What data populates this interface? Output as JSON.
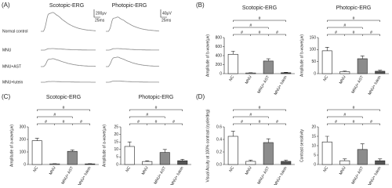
{
  "panel_labels": [
    "(A)",
    "(B)",
    "(C)",
    "(D)"
  ],
  "erg": {
    "columns": [
      "Scotopic-ERG",
      "Photopic-ERG"
    ],
    "rows": [
      "Normal control",
      "MNU",
      "MNU+AST",
      "MNU+lutein"
    ],
    "scale_bars": [
      [
        "200μv",
        "25ms"
      ],
      [
        "40μV",
        "25ms"
      ]
    ]
  },
  "chart_data": [
    {
      "type": "bar",
      "title": "Scotopic-ERG",
      "ylabel": "Amplitude of b-wave(μv)",
      "categories": [
        "NC",
        "MNU",
        "MNU+ AST",
        "MNU+ lutein"
      ],
      "values": [
        430,
        15,
        280,
        20
      ],
      "errors": [
        70,
        5,
        50,
        10
      ],
      "colors": [
        "#ffffff",
        "#ffffff",
        "#8c8c8c",
        "#555555"
      ],
      "ylim": [
        0,
        800
      ],
      "yticks": [
        0,
        200,
        400,
        600,
        800
      ],
      "significance": "#"
    },
    {
      "type": "bar",
      "title": "Photopic-ERG",
      "ylabel": "Amplitude of b-wave(μv)",
      "categories": [
        "NC",
        "MNU",
        "MNU+ AST",
        "MNU+ lutein"
      ],
      "values": [
        95,
        8,
        62,
        10
      ],
      "errors": [
        15,
        3,
        12,
        4
      ],
      "colors": [
        "#ffffff",
        "#ffffff",
        "#8c8c8c",
        "#555555"
      ],
      "ylim": [
        0,
        150
      ],
      "yticks": [
        0,
        50,
        100,
        150
      ],
      "significance": "#"
    },
    {
      "type": "bar",
      "title": "Scotopic-ERG",
      "ylabel": "Amplitude of a-wave(μv)",
      "categories": [
        "NC",
        "MNU",
        "MNU+ AST",
        "MNU+ lutein"
      ],
      "values": [
        190,
        5,
        105,
        5
      ],
      "errors": [
        20,
        2,
        12,
        2
      ],
      "colors": [
        "#ffffff",
        "#ffffff",
        "#8c8c8c",
        "#555555"
      ],
      "ylim": [
        0,
        300
      ],
      "yticks": [
        0,
        100,
        200,
        300
      ],
      "significance": "#"
    },
    {
      "type": "bar",
      "title": "Photopic-ERG",
      "ylabel": "Amplitude of a-wave(μv)",
      "categories": [
        "NC",
        "MNU",
        "MNU+ AST",
        "MNU+ lutein"
      ],
      "values": [
        12,
        2,
        8,
        2.5
      ],
      "errors": [
        3,
        0.5,
        2,
        1
      ],
      "colors": [
        "#ffffff",
        "#ffffff",
        "#8c8c8c",
        "#555555"
      ],
      "ylim": [
        0,
        25
      ],
      "yticks": [
        0,
        5,
        10,
        15,
        20,
        25
      ],
      "significance": "#"
    },
    {
      "type": "bar",
      "title": "",
      "ylabel": "Visual Acuity at 100% contrast (cycle/deg)",
      "categories": [
        "NC",
        "MNU",
        "MNU+ AST",
        "MNU+ lutein"
      ],
      "values": [
        0.45,
        0.05,
        0.35,
        0.05
      ],
      "errors": [
        0.08,
        0.02,
        0.06,
        0.02
      ],
      "colors": [
        "#ffffff",
        "#ffffff",
        "#8c8c8c",
        "#555555"
      ],
      "ylim": [
        0,
        0.6
      ],
      "yticks": [
        {
          "value": 0,
          "label": "0.0"
        },
        {
          "value": 0.2,
          "label": "0.2"
        },
        {
          "value": 0.4,
          "label": "0.4"
        },
        {
          "value": 0.6,
          "label": "0.6"
        }
      ],
      "significance": "#"
    },
    {
      "type": "bar",
      "title": "",
      "ylabel": "Contrast sensitivity",
      "categories": [
        "NC",
        "MNU",
        "MNU+ AST",
        "MNU+ lutein"
      ],
      "values": [
        12,
        2,
        8,
        2
      ],
      "errors": [
        3,
        1,
        3,
        1
      ],
      "colors": [
        "#ffffff",
        "#ffffff",
        "#8c8c8c",
        "#555555"
      ],
      "ylim": [
        0,
        20
      ],
      "yticks": [
        0,
        5,
        10,
        15,
        20
      ],
      "significance": "#"
    }
  ]
}
